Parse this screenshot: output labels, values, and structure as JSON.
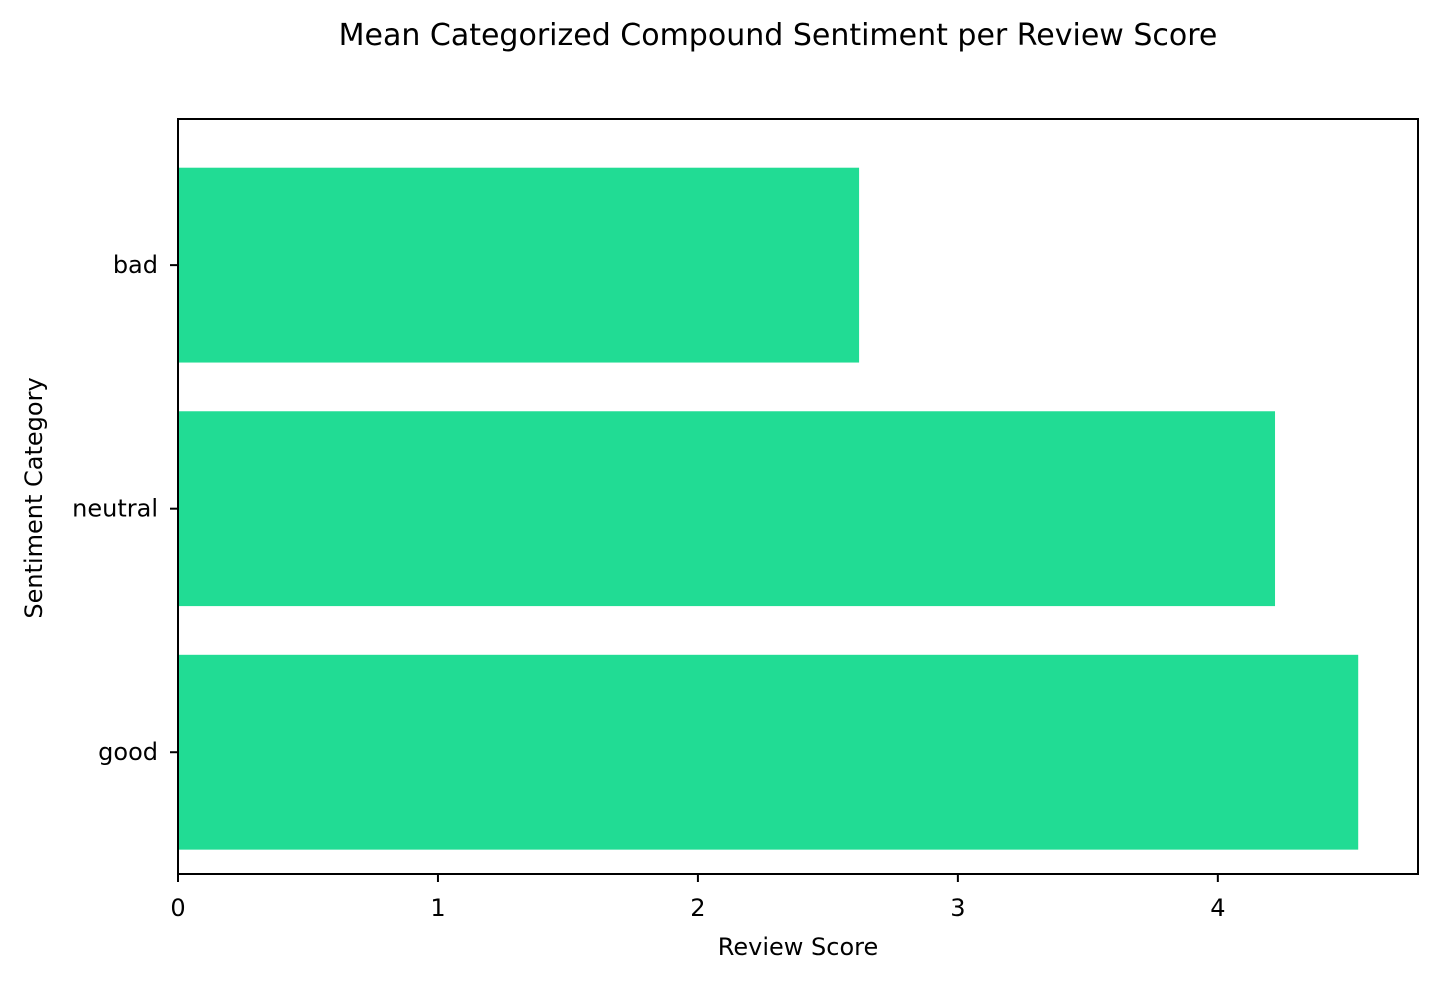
{
  "chart_data": {
    "type": "bar",
    "orientation": "horizontal",
    "title": "Mean Categorized Compound Sentiment per Review Score",
    "xlabel": "Review Score",
    "ylabel": "Sentiment Category",
    "categories": [
      "bad",
      "neutral",
      "good"
    ],
    "values": [
      2.62,
      4.22,
      4.54
    ],
    "xlim": [
      0,
      4.77
    ],
    "xticks": [
      0,
      1,
      2,
      3,
      4
    ],
    "grid": false,
    "bar_color": "#21dc94"
  }
}
